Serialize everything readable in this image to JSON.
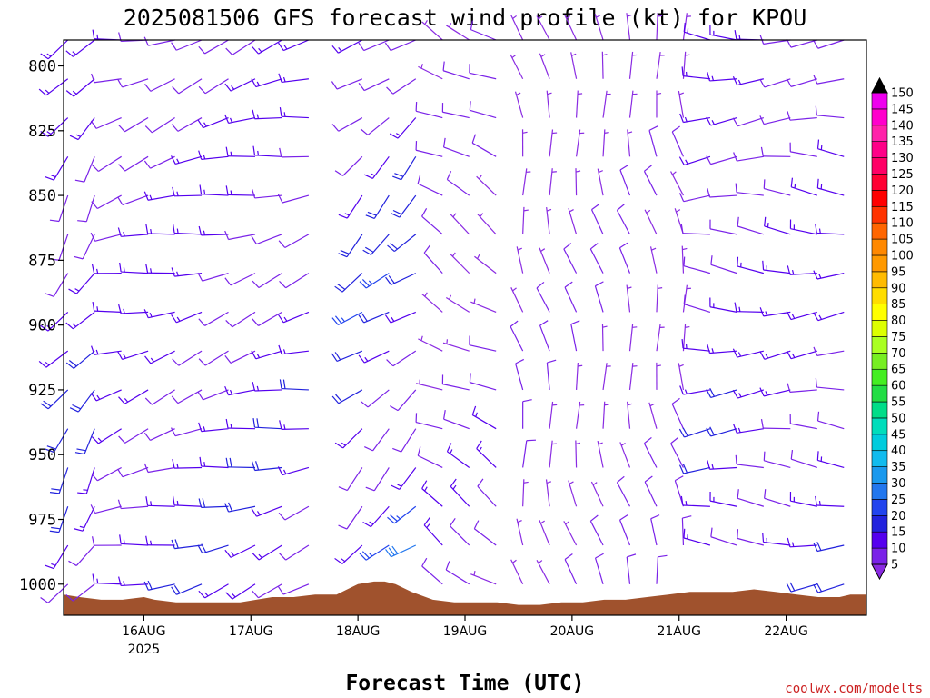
{
  "chart_data": {
    "type": "wind_barb_profile",
    "title": "2025081506 GFS forecast wind profile (kt) for KPOU",
    "xlabel": "Forecast Time (UTC)",
    "ylabel": "",
    "y_axis": {
      "ticks": [
        800,
        825,
        850,
        875,
        900,
        925,
        950,
        975,
        1000
      ],
      "range_hPa": [
        790,
        1012
      ],
      "inverted": true
    },
    "x_axis": {
      "ticks": [
        {
          "label": "16AUG",
          "year": "2025",
          "day": 1
        },
        {
          "label": "17AUG",
          "day": 2
        },
        {
          "label": "18AUG",
          "day": 3
        },
        {
          "label": "19AUG",
          "day": 4
        },
        {
          "label": "20AUG",
          "day": 5
        },
        {
          "label": "21AUG",
          "day": 6
        },
        {
          "label": "22AUG",
          "day": 7
        }
      ],
      "range_days": [
        0.25,
        7.75
      ]
    },
    "colorbar": {
      "units": "kt",
      "labels": [
        5,
        10,
        15,
        20,
        25,
        30,
        35,
        40,
        45,
        50,
        55,
        60,
        65,
        70,
        75,
        80,
        85,
        90,
        95,
        100,
        105,
        110,
        115,
        120,
        125,
        130,
        135,
        140,
        145,
        150
      ],
      "colors": [
        "#8a2be2",
        "#7a22e8",
        "#5500ee",
        "#2222dd",
        "#2244ee",
        "#2277ee",
        "#1a99ee",
        "#11bbee",
        "#00ccdd",
        "#00ddbb",
        "#00dd88",
        "#22dd44",
        "#44ee22",
        "#77ee22",
        "#aaff22",
        "#ddff00",
        "#ffff00",
        "#ffdd00",
        "#ffbb00",
        "#ff9900",
        "#ff8800",
        "#ff6600",
        "#ff3300",
        "#ff0000",
        "#ff0033",
        "#ff0066",
        "#ff0088",
        "#ff22aa",
        "#ff00cc",
        "#ee00ee"
      ]
    },
    "surface_pressure": {
      "days": [
        0.25,
        0.4,
        0.6,
        0.8,
        1.0,
        1.1,
        1.3,
        1.6,
        1.9,
        2.2,
        2.4,
        2.6,
        2.8,
        3.0,
        3.15,
        3.25,
        3.35,
        3.5,
        3.7,
        3.9,
        4.1,
        4.3,
        4.5,
        4.7,
        4.9,
        5.1,
        5.3,
        5.5,
        5.7,
        5.9,
        6.1,
        6.3,
        6.5,
        6.7,
        6.9,
        7.1,
        7.3,
        7.5,
        7.6,
        7.75
      ],
      "hPa": [
        1004,
        1005,
        1006,
        1006,
        1005,
        1006,
        1007,
        1007,
        1007,
        1005,
        1005,
        1004,
        1004,
        1000,
        999,
        999,
        1000,
        1003,
        1006,
        1007,
        1007,
        1007,
        1008,
        1008,
        1007,
        1007,
        1006,
        1006,
        1005,
        1004,
        1003,
        1003,
        1003,
        1002,
        1003,
        1004,
        1005,
        1005,
        1004,
        1004
      ]
    },
    "barb_grid": {
      "time_step_days": 0.25,
      "pressure_levels": [
        790,
        805,
        820,
        835,
        850,
        865,
        880,
        895,
        910,
        925,
        940,
        955,
        970,
        985,
        1000
      ],
      "wind_regimes": [
        {
          "days": [
            0.25,
            0.75
          ],
          "from_dir_deg": 215,
          "speed_kt": [
            10,
            25
          ]
        },
        {
          "days": [
            0.75,
            2.75
          ],
          "from_dir_deg": 255,
          "speed_kt": [
            10,
            20
          ]
        },
        {
          "days": [
            3.0,
            3.6
          ],
          "from_dir_deg": 230,
          "speed_kt": [
            10,
            30
          ]
        },
        {
          "days": [
            3.6,
            4.5
          ],
          "from_dir_deg": 300,
          "speed_kt": [
            5,
            15
          ]
        },
        {
          "days": [
            4.5,
            6.2
          ],
          "from_dir_deg": 350,
          "speed_kt": [
            5,
            10
          ]
        },
        {
          "days": [
            6.2,
            7.75
          ],
          "from_dir_deg": 270,
          "speed_kt": [
            10,
            20
          ]
        }
      ]
    }
  },
  "credit": "coolwx.com/modelts"
}
